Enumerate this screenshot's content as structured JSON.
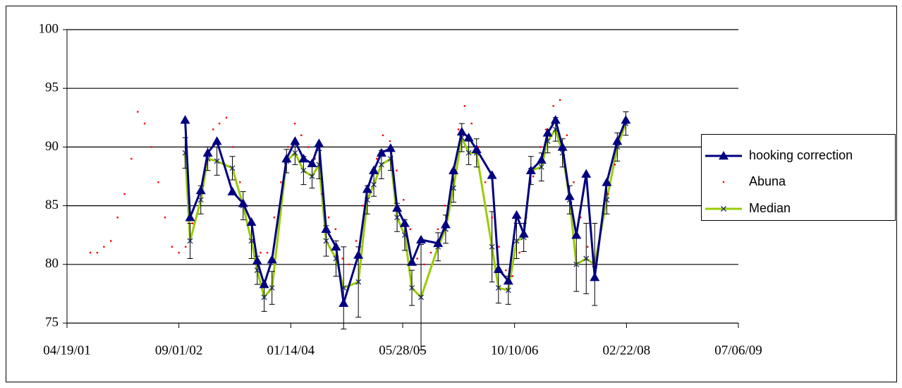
{
  "chart_data": {
    "type": "line",
    "xlim": [
      "04/19/01",
      "07/06/09"
    ],
    "xticks": [
      "04/19/01",
      "09/01/02",
      "01/14/04",
      "05/28/05",
      "10/10/06",
      "02/22/08",
      "07/06/09"
    ],
    "ylim": [
      75,
      100
    ],
    "yticks": [
      75,
      80,
      85,
      90,
      95,
      100
    ],
    "grid": true,
    "legend": "right",
    "series": [
      {
        "name": "hooking correction",
        "color": "#000080",
        "marker": "triangle",
        "x": [
          "09/29/02",
          "10/21/02",
          "12/08/02",
          "01/08/03",
          "02/18/03",
          "04/28/03",
          "06/15/03",
          "07/22/03",
          "08/17/03",
          "09/17/03",
          "10/22/03",
          "12/26/03",
          "02/02/04",
          "03/11/04",
          "04/18/04",
          "05/19/04",
          "06/20/04",
          "08/03/04",
          "09/06/04",
          "11/11/04",
          "12/21/04",
          "01/19/05",
          "02/22/05",
          "04/04/05",
          "05/03/05",
          "06/06/05",
          "07/08/05",
          "08/18/05",
          "11/02/05",
          "12/06/05",
          "01/10/06",
          "02/16/06",
          "03/19/06",
          "04/23/06",
          "07/01/06",
          "07/30/06",
          "09/12/06",
          "10/19/06",
          "11/20/06",
          "12/22/06",
          "02/07/07",
          "03/07/07",
          "04/11/07",
          "05/12/07",
          "06/13/07",
          "07/13/07",
          "08/26/07",
          "10/03/07",
          "11/26/07",
          "01/12/08",
          "02/19/08"
        ],
        "values": [
          92.3,
          84,
          86.3,
          89.5,
          90.5,
          86.2,
          85.2,
          83.6,
          80.3,
          78.3,
          80.4,
          89,
          90.5,
          89,
          88.6,
          90.3,
          83,
          81.5,
          76.7,
          80.8,
          86.4,
          88,
          89.5,
          89.9,
          84.8,
          83.5,
          80.2,
          82.1,
          81.8,
          83.4,
          88,
          91.3,
          90.8,
          89.8,
          87.6,
          79.6,
          78.6,
          84.2,
          82.6,
          88,
          88.9,
          91.2,
          92.3,
          90,
          85.8,
          82.5,
          87.7,
          78.9,
          87,
          90.5,
          92.3
        ]
      },
      {
        "name": "Abuna",
        "color": "#ff0000",
        "marker": "dot",
        "x": [
          "08/01/01",
          "09/01/01",
          "10/01/01",
          "11/01/01",
          "12/01/01",
          "01/01/02",
          "02/01/02",
          "03/01/02",
          "04/01/02",
          "05/01/02",
          "06/01/02",
          "07/01/02",
          "08/01/02",
          "09/01/02",
          "10/01/02",
          "11/01/02",
          "12/01/02",
          "01/01/03",
          "02/01/03",
          "03/01/03",
          "04/01/03",
          "05/01/03",
          "06/01/03",
          "07/01/03",
          "08/01/03",
          "09/01/03",
          "10/01/03",
          "11/01/03",
          "12/01/03",
          "01/01/04",
          "02/01/04",
          "03/01/04",
          "04/01/04",
          "05/01/04",
          "06/01/04",
          "07/01/04",
          "08/01/04",
          "09/01/04",
          "10/01/04",
          "11/01/04",
          "12/01/04",
          "01/01/05",
          "02/01/05",
          "03/01/05",
          "04/01/05",
          "05/01/05",
          "06/01/05",
          "07/01/05",
          "08/01/05",
          "09/01/05",
          "10/01/05",
          "11/01/05",
          "12/01/05",
          "01/01/06",
          "02/01/06",
          "03/01/06",
          "04/01/06",
          "05/01/06",
          "06/01/06",
          "07/01/06",
          "08/01/06",
          "09/01/06",
          "10/01/06",
          "11/01/06",
          "12/01/06",
          "01/01/07",
          "02/01/07",
          "03/01/07",
          "04/01/07",
          "05/01/07",
          "06/01/07",
          "07/01/07",
          "08/01/07",
          "09/01/07",
          "10/01/07",
          "11/01/07",
          "12/01/07",
          "01/01/08"
        ],
        "values": [
          81,
          81,
          81.5,
          82,
          84,
          86,
          89,
          93,
          92,
          90,
          87,
          84,
          81.5,
          81,
          81.5,
          83.5,
          86,
          88.5,
          91.5,
          92,
          92.5,
          90,
          87,
          85,
          82,
          81,
          81,
          84,
          87,
          90,
          92,
          91,
          90,
          89,
          86,
          84,
          83,
          80.5,
          80,
          82,
          85,
          87,
          89,
          91,
          90.5,
          88,
          85.5,
          83,
          80.5,
          80,
          81,
          83,
          85,
          88,
          91.5,
          93.5,
          92,
          90,
          87,
          84,
          81.5,
          79.5,
          79,
          81,
          84,
          87.5,
          90,
          91.5,
          93.5,
          94,
          91,
          87,
          84,
          81.5,
          80,
          83,
          86,
          88.5
        ]
      },
      {
        "name": "Median",
        "color": "#99cc00",
        "marker": "x",
        "marker_color": "#1f2d6b",
        "error_color": "#000000",
        "x": [
          "09/29/02",
          "10/21/02",
          "12/08/02",
          "01/08/03",
          "02/18/03",
          "04/28/03",
          "06/15/03",
          "07/22/03",
          "08/17/03",
          "09/17/03",
          "10/22/03",
          "12/26/03",
          "02/02/04",
          "03/11/04",
          "04/18/04",
          "05/19/04",
          "06/20/04",
          "08/03/04",
          "09/06/04",
          "11/11/04",
          "12/21/04",
          "01/19/05",
          "02/22/05",
          "04/04/05",
          "05/03/05",
          "06/06/05",
          "07/08/05",
          "08/18/05",
          "11/02/05",
          "12/06/05",
          "01/10/06",
          "02/16/06",
          "03/19/06",
          "04/23/06",
          "07/01/06",
          "07/30/06",
          "09/12/06",
          "10/19/06",
          "11/20/06",
          "12/22/06",
          "02/07/07",
          "03/07/07",
          "04/11/07",
          "05/12/07",
          "06/13/07",
          "07/13/07",
          "08/26/07",
          "10/03/07",
          "11/26/07",
          "01/12/08",
          "02/19/08"
        ],
        "values": [
          89.5,
          82,
          85.5,
          89,
          88.8,
          88.2,
          85,
          82,
          79.5,
          77.2,
          78,
          88.8,
          89.5,
          88,
          87.5,
          88.5,
          82,
          80.5,
          78,
          78.5,
          85.5,
          86.8,
          88.5,
          89,
          84,
          82.5,
          78,
          77.2,
          81.5,
          83,
          86.5,
          90.8,
          89.5,
          89.5,
          81.5,
          78,
          77.8,
          82,
          82.3,
          88,
          88.3,
          90.5,
          91.5,
          89.5,
          85.5,
          80,
          80.5,
          80,
          85.5,
          90,
          92
        ],
        "errors": [
          1.3,
          1.5,
          1.2,
          1,
          1.2,
          1,
          1.2,
          1.5,
          1.2,
          1.2,
          1.4,
          1,
          1,
          1.2,
          1,
          1.2,
          1.3,
          1.5,
          3.5,
          3,
          1.2,
          1,
          1.2,
          1,
          1.2,
          1.3,
          1.5,
          4.5,
          1.2,
          1.2,
          1.2,
          1.2,
          1,
          1.2,
          3,
          1.3,
          1.2,
          1.5,
          1.2,
          1.2,
          1.2,
          1,
          1,
          1.2,
          1.2,
          2.3,
          3,
          3.5,
          1.2,
          1.2,
          1
        ]
      }
    ]
  }
}
